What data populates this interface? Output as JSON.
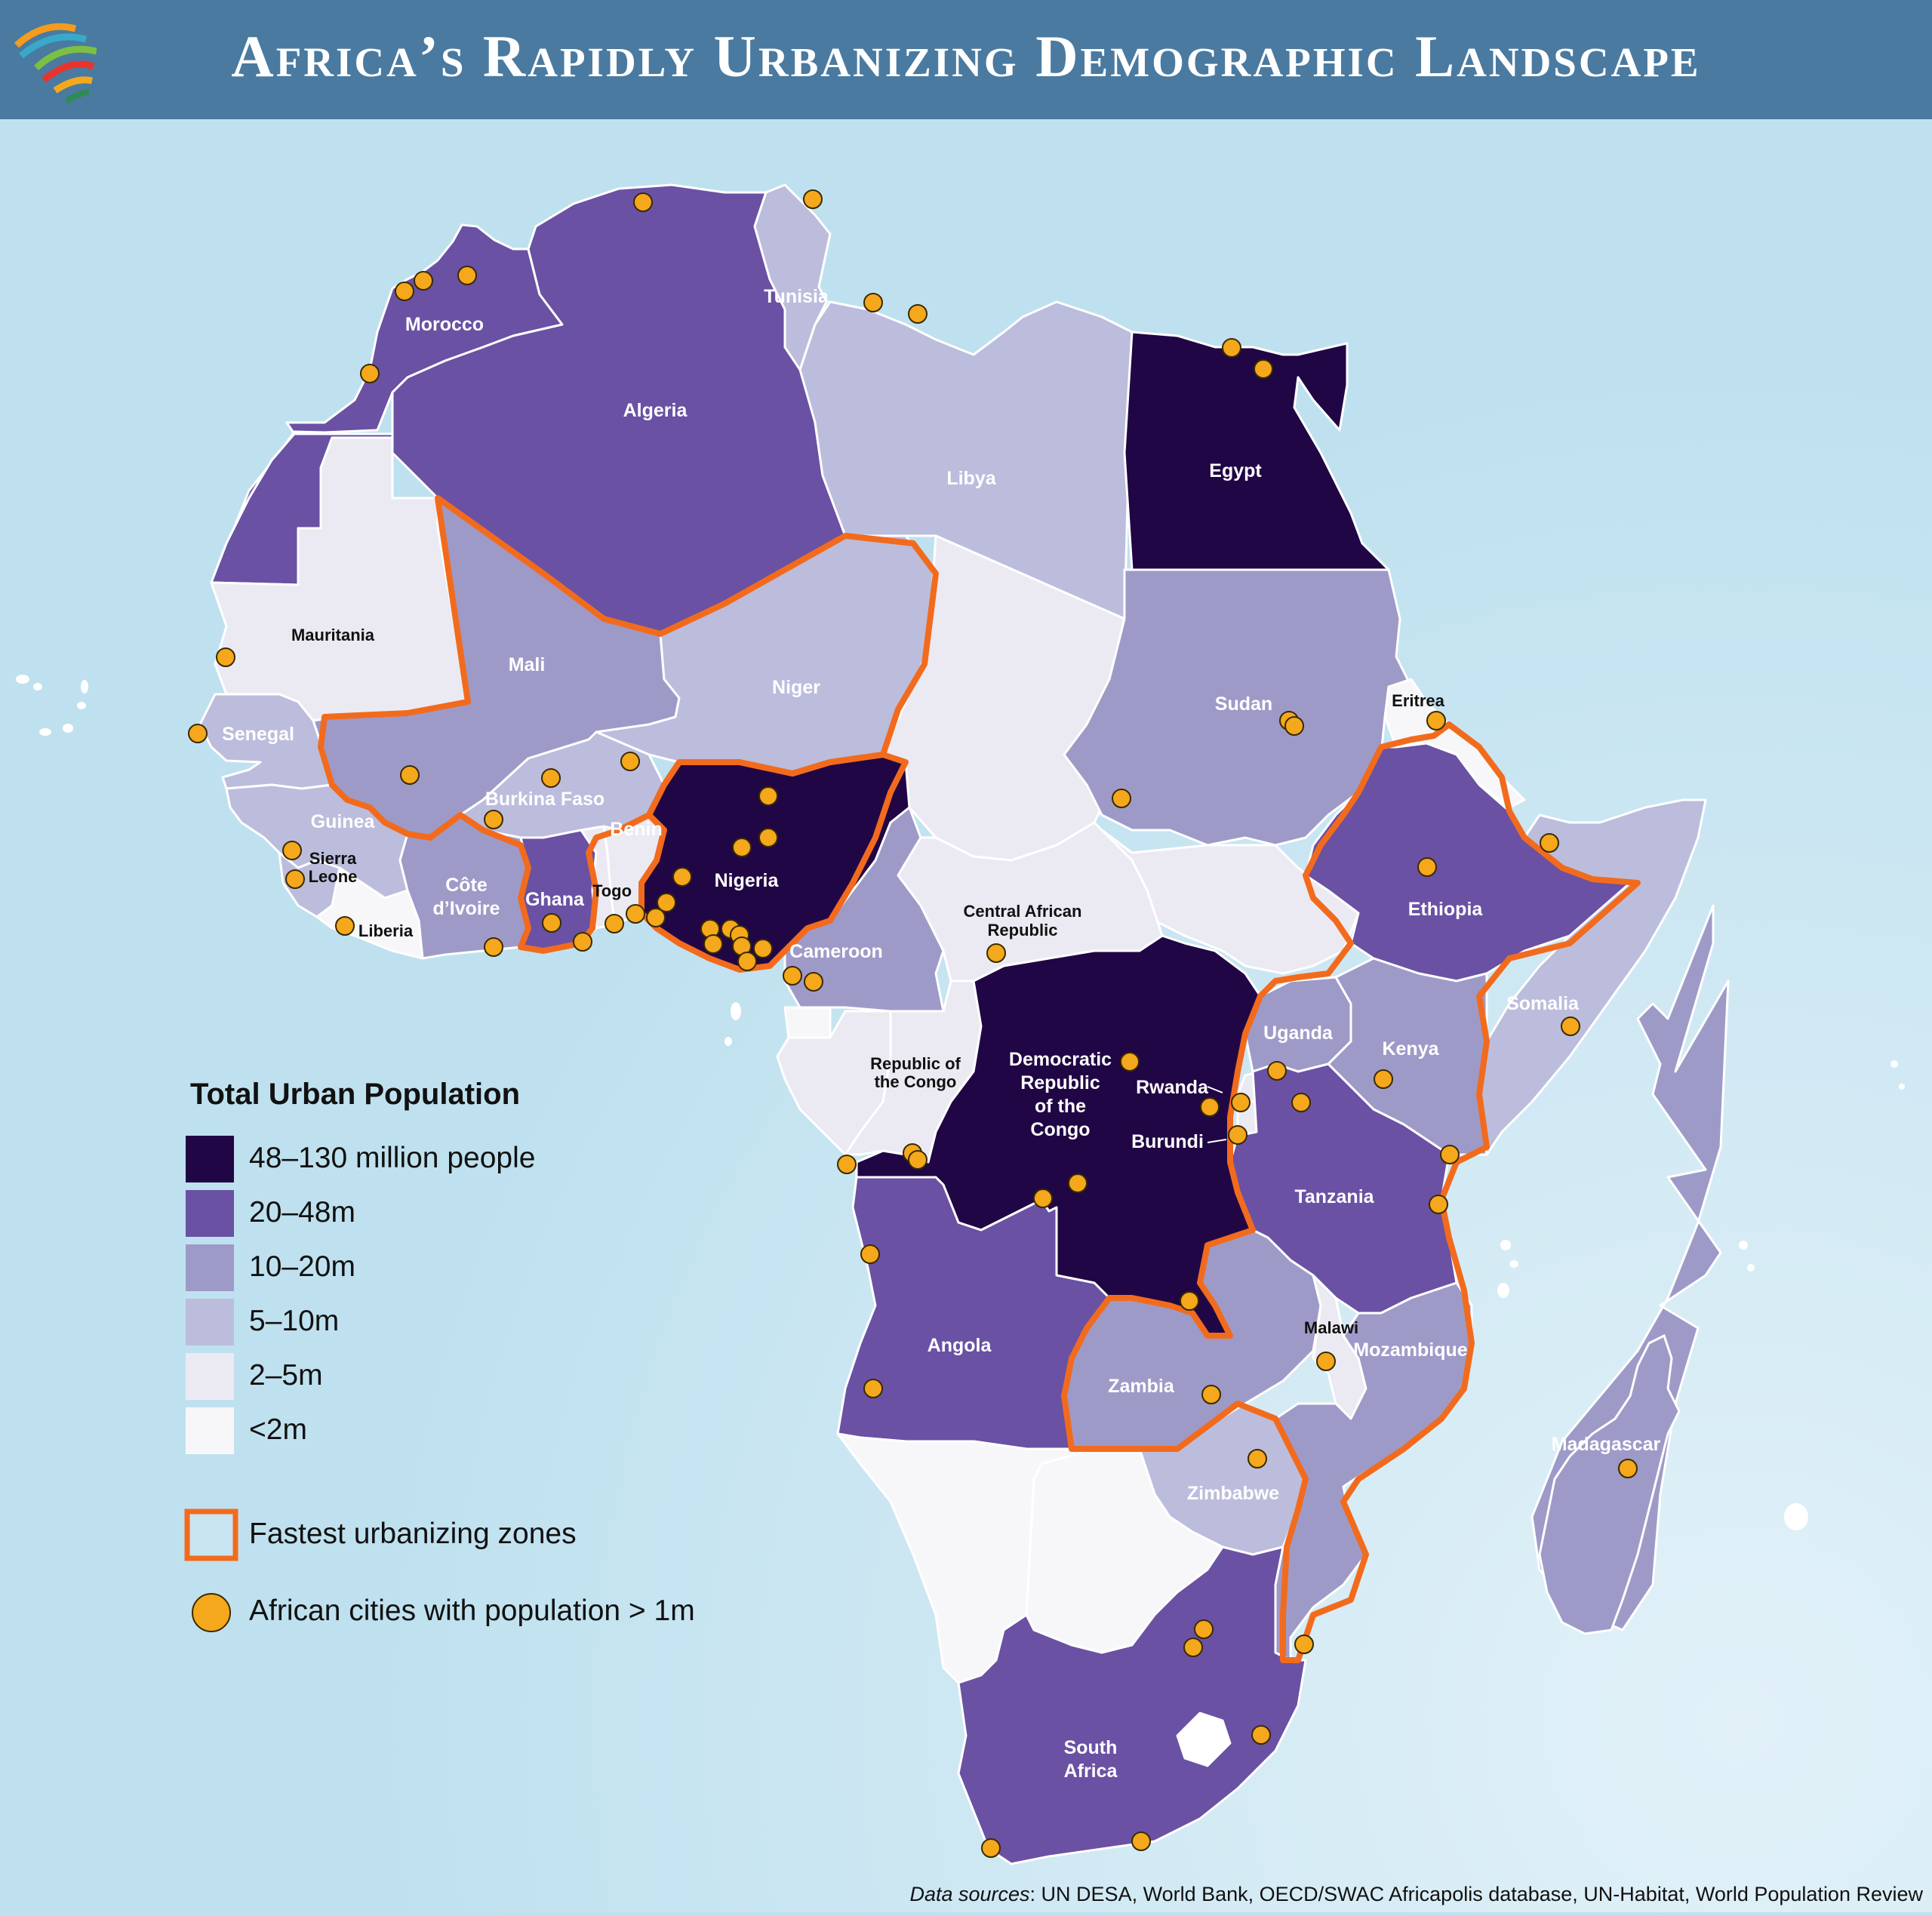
{
  "title": "Africa’s Rapidly Urbanizing Demographic Landscape",
  "colors": {
    "ocean": "#bfe1ef",
    "header": "#4a7aa0",
    "c48_130": "#210645",
    "c20_48": "#6a51a3",
    "c10_20": "#9e9ac8",
    "c5_10": "#bcbddc",
    "c2_5": "#ebeaf3",
    "c_lt2": "#f7f7fa",
    "fastest_border": "#f26b1d",
    "city": "#f5a81c"
  },
  "legend": {
    "title": "Total Urban Population",
    "classes": [
      {
        "label": "48–130 million people",
        "color": "#210645"
      },
      {
        "label": "20–48m",
        "color": "#6a51a3"
      },
      {
        "label": "10–20m",
        "color": "#9e9ac8"
      },
      {
        "label": "5–10m",
        "color": "#bcbddc"
      },
      {
        "label": "2–5m",
        "color": "#ebeaf3"
      },
      {
        "label": "<2m",
        "color": "#f7f7fa"
      }
    ],
    "fastest_label": "Fastest urbanizing zones",
    "cities_label": "African cities with population > 1m"
  },
  "countries": {
    "morocco": "Morocco",
    "algeria": "Algeria",
    "tunisia": "Tunisia",
    "libya": "Libya",
    "egypt": "Egypt",
    "mauritania": "Mauritania",
    "mali": "Mali",
    "niger": "Niger",
    "sudan": "Sudan",
    "eritrea": "Eritrea",
    "senegal": "Senegal",
    "guinea": "Guinea",
    "sierra_leone_1": "Sierra",
    "sierra_leone_2": "Leone",
    "liberia": "Liberia",
    "cote_1": "Côte",
    "cote_2": "d’Ivoire",
    "burkina": "Burkina Faso",
    "ghana": "Ghana",
    "togo": "Togo",
    "benin": "Benin",
    "nigeria": "Nigeria",
    "cameroon": "Cameroon",
    "car_1": "Central African",
    "car_2": "Republic",
    "ethiopia": "Ethiopia",
    "somalia": "Somalia",
    "roc_1": "Republic of",
    "roc_2": "the Congo",
    "drc_1": "Democratic",
    "drc_2": "Republic",
    "drc_3": "of the",
    "drc_4": "Congo",
    "rwanda": "Rwanda",
    "burundi": "Burundi",
    "uganda": "Uganda",
    "kenya": "Kenya",
    "tanzania": "Tanzania",
    "angola": "Angola",
    "zambia": "Zambia",
    "malawi": "Malawi",
    "mozambique": "Mozambique",
    "zimbabwe": "Zimbabwe",
    "madagascar": "Madagascar",
    "sa_1": "South",
    "sa_2": "Africa"
  },
  "source": {
    "prefix": "Data sources",
    "text": ": UN DESA, World Bank, OECD/SWAC Africapolis database, UN-Habitat, World Population Review"
  }
}
